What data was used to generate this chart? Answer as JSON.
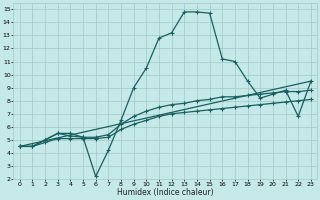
{
  "title": "",
  "xlabel": "Humidex (Indice chaleur)",
  "xlim": [
    -0.5,
    23.5
  ],
  "ylim": [
    2,
    15.5
  ],
  "yticks": [
    2,
    3,
    4,
    5,
    6,
    7,
    8,
    9,
    10,
    11,
    12,
    13,
    14,
    15
  ],
  "xticks": [
    0,
    1,
    2,
    3,
    4,
    5,
    6,
    7,
    8,
    9,
    10,
    11,
    12,
    13,
    14,
    15,
    16,
    17,
    18,
    19,
    20,
    21,
    22,
    23
  ],
  "bg_color": "#c5e8e8",
  "grid_color": "#a0c8c8",
  "line_color": "#1a6060",
  "line_width": 0.9,
  "marker": "+",
  "marker_size": 3.5,
  "series1": {
    "x": [
      0,
      1,
      2,
      3,
      4,
      5,
      6,
      7,
      8,
      9,
      10,
      11,
      12,
      13,
      14,
      15,
      16,
      17,
      18,
      19,
      20,
      21,
      22,
      23
    ],
    "y": [
      4.5,
      4.5,
      5.0,
      5.5,
      5.5,
      5.2,
      2.2,
      4.2,
      6.5,
      9.0,
      10.5,
      12.8,
      13.2,
      14.8,
      14.8,
      14.7,
      11.2,
      11.0,
      9.5,
      8.2,
      8.5,
      8.8,
      6.8,
      9.5
    ]
  },
  "series2": {
    "x": [
      0,
      1,
      2,
      3,
      4,
      5,
      6,
      7,
      8,
      9,
      10,
      11,
      12,
      13,
      14,
      15,
      16,
      17,
      18,
      19,
      20,
      21,
      22,
      23
    ],
    "y": [
      4.5,
      4.5,
      5.0,
      5.5,
      5.3,
      5.2,
      5.2,
      5.4,
      6.2,
      6.8,
      7.2,
      7.5,
      7.7,
      7.8,
      8.0,
      8.1,
      8.3,
      8.3,
      8.4,
      8.5,
      8.6,
      8.7,
      8.7,
      8.8
    ]
  },
  "series3": {
    "x": [
      0,
      1,
      2,
      3,
      4,
      5,
      6,
      7,
      8,
      9,
      10,
      11,
      12,
      13,
      14,
      15,
      16,
      17,
      18,
      19,
      20,
      21,
      22,
      23
    ],
    "y": [
      4.5,
      4.5,
      4.8,
      5.1,
      5.1,
      5.1,
      5.1,
      5.2,
      5.8,
      6.2,
      6.5,
      6.8,
      7.0,
      7.1,
      7.2,
      7.3,
      7.4,
      7.5,
      7.6,
      7.7,
      7.8,
      7.9,
      8.0,
      8.1
    ]
  },
  "series4": {
    "x": [
      0,
      23
    ],
    "y": [
      4.5,
      9.5
    ]
  }
}
